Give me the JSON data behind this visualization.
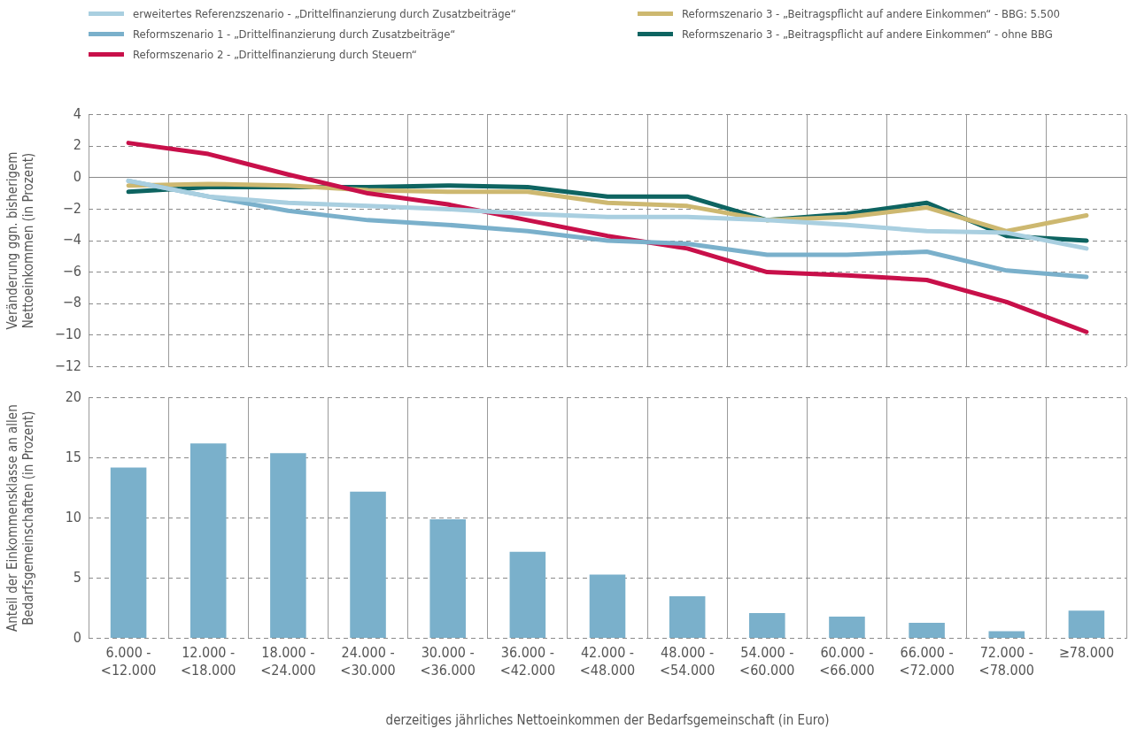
{
  "chart_data": [
    {
      "type": "line",
      "ylabel": "Veränderung ggn. bisherigem\nNettoeinkommen (in Prozent)",
      "categories": [
        null,
        null,
        null,
        null,
        null,
        null,
        null,
        null,
        null,
        null,
        null,
        null,
        null
      ],
      "series": [
        {
          "name": "erweitertes Referenzszenario - „Drittelfinanzierung durch Zusatzbeiträge“",
          "color": "#a9cfe0",
          "values": [
            -0.2,
            -1.2,
            -1.6,
            -1.8,
            -2.0,
            -2.3,
            -2.5,
            -2.5,
            -2.7,
            -3.0,
            -3.4,
            -3.5,
            -4.5
          ]
        },
        {
          "name": "Reformszenario 1 - „Drittelfinanzierung durch Zusatzbeiträge“",
          "color": "#7ab0cb",
          "values": [
            -0.2,
            -1.2,
            -2.1,
            -2.7,
            -3.0,
            -3.4,
            -4.0,
            -4.2,
            -4.9,
            -4.9,
            -4.7,
            -5.9,
            -6.3
          ]
        },
        {
          "name": "Reformszenario 2 - „Drittelfinanzierung durch Steuern“",
          "color": "#c8104a",
          "values": [
            2.2,
            1.5,
            0.2,
            -1.0,
            -1.7,
            -2.7,
            -3.7,
            -4.5,
            -6.0,
            -6.2,
            -6.5,
            -7.9,
            -9.8
          ]
        },
        {
          "name": "Reformszenario 3 - „Beitragspflicht auf andere Einkommen“ - BBG: 5.500",
          "color": "#cdb870",
          "values": [
            -0.5,
            -0.4,
            -0.5,
            -0.8,
            -0.9,
            -0.9,
            -1.6,
            -1.8,
            -2.7,
            -2.5,
            -1.9,
            -3.4,
            -2.4
          ]
        },
        {
          "name": "Reformszenario 3 - „Beitragspflicht auf andere Einkommen“ - ohne BBG",
          "color": "#0e6461",
          "values": [
            -0.9,
            -0.6,
            -0.6,
            -0.6,
            -0.5,
            -0.6,
            -1.2,
            -1.2,
            -2.7,
            -2.3,
            -1.6,
            -3.7,
            -4.0
          ]
        }
      ],
      "ylim": [
        -12,
        4
      ],
      "yticks": [
        4,
        2,
        0,
        {
          "value": -2,
          "label": "−2"
        },
        {
          "value": -4,
          "label": "−4"
        },
        {
          "value": -6,
          "label": "−6"
        },
        {
          "value": -8,
          "label": "−8"
        },
        {
          "value": -10,
          "label": "−10"
        },
        {
          "value": -12,
          "label": "−12"
        }
      ],
      "grid": true,
      "legend": "top",
      "tick_labels": "y",
      "marker": "none",
      "line_style": "solid"
    },
    {
      "type": "bar",
      "xlabel": "derzeitiges jährliches Nettoeinkommen der Bedarfsgemeinschaft (in Euro)",
      "ylabel": "Anteil der Einkommensklasse an allen\nBedarfsgemeinschaften (in Prozent)",
      "categories": [
        "6.000 -\n<12.000",
        "12.000 -\n<18.000",
        "18.000 -\n<24.000",
        "24.000 -\n<30.000",
        "30.000 -\n<36.000",
        "36.000 -\n<42.000",
        "42.000 -\n<48.000",
        "48.000 -\n<54.000",
        "54.000 -\n<60.000",
        "60.000 -\n<66.000",
        "66.000 -\n<72.000",
        "72.000 -\n<78.000",
        "≥78.000"
      ],
      "values": [
        14.2,
        16.2,
        15.4,
        12.2,
        9.9,
        7.2,
        5.3,
        3.5,
        2.1,
        1.8,
        1.3,
        0.6,
        2.3
      ],
      "color": "#7ab0cb",
      "ylim": [
        0,
        20
      ],
      "yticks": [
        0,
        5,
        10,
        15,
        20
      ],
      "grid": true
    }
  ]
}
